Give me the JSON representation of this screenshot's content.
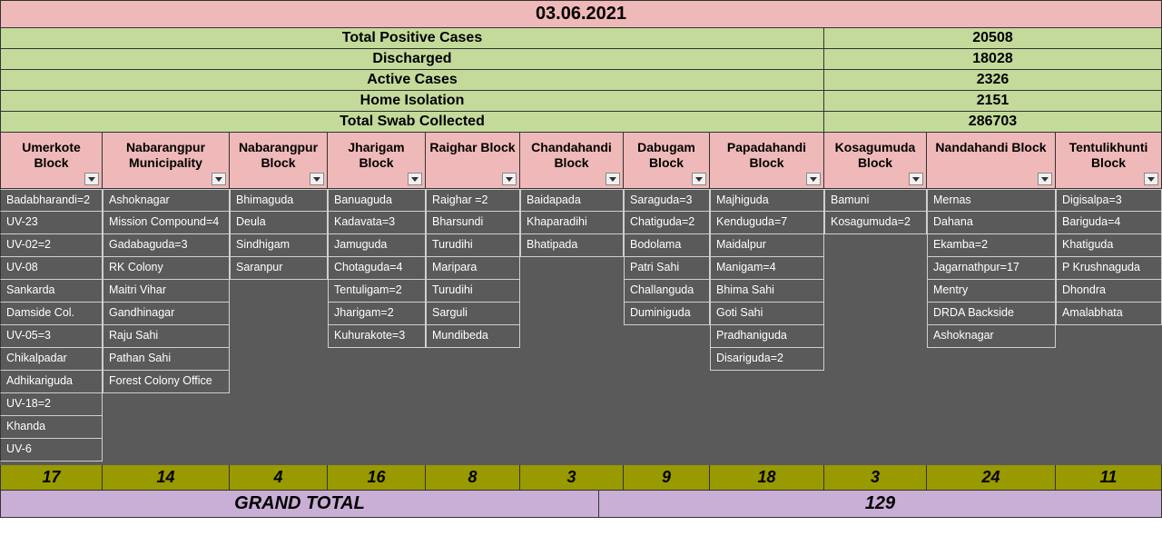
{
  "title": "03.06.2021",
  "summary": [
    {
      "label": "Total Positive Cases",
      "value": "20508"
    },
    {
      "label": "Discharged",
      "value": "18028"
    },
    {
      "label": "Active Cases",
      "value": "2326"
    },
    {
      "label": "Home Isolation",
      "value": "2151"
    },
    {
      "label": "Total Swab Collected",
      "value": "286703"
    }
  ],
  "columns": [
    {
      "header": "Umerkote Block",
      "width_class": "w0",
      "total": "17",
      "items": [
        "Badabharandi=2",
        "UV-23",
        "UV-02=2",
        "UV-08",
        "Sankarda",
        "Damside Col.",
        "UV-05=3",
        "Chikalpadar",
        "Adhikariguda",
        "UV-18=2",
        "Khanda",
        "UV-6"
      ]
    },
    {
      "header": "Nabarangpur Municipality",
      "width_class": "w1",
      "total": "14",
      "items": [
        "Ashoknagar",
        "Mission Compound=4",
        "Gadabaguda=3",
        "RK Colony",
        "Maitri Vihar",
        "Gandhinagar",
        "Raju Sahi",
        "Pathan Sahi",
        "Forest Colony Office"
      ]
    },
    {
      "header": "Nabarangpur Block",
      "width_class": "w2",
      "total": "4",
      "items": [
        "Bhimaguda",
        "Deula",
        "Sindhigam",
        "Saranpur"
      ]
    },
    {
      "header": "Jharigam Block",
      "width_class": "w3",
      "total": "16",
      "items": [
        "Banuaguda",
        "Kadavata=3",
        "Jamuguda",
        "Chotaguda=4",
        "Tentuligam=2",
        "Jharigam=2",
        "Kuhurakote=3"
      ]
    },
    {
      "header": "Raighar Block",
      "width_class": "w4",
      "total": "8",
      "items": [
        "Raighar  =2",
        "Bharsundi",
        "Turudihi",
        "Maripara",
        "Turudihi",
        "Sarguli",
        "Mundibeda"
      ]
    },
    {
      "header": "Chandahandi Block",
      "width_class": "w5",
      "total": "3",
      "items": [
        "Baidapada",
        "Khaparadihi",
        "Bhatipada"
      ]
    },
    {
      "header": "Dabugam Block",
      "width_class": "w6",
      "total": "9",
      "items": [
        "Saraguda=3",
        "Chatiguda=2",
        "Bodolama",
        "Patri Sahi",
        "Challanguda",
        "Duminiguda"
      ]
    },
    {
      "header": "Papadahandi Block",
      "width_class": "w7",
      "total": "18",
      "items": [
        "Majhiguda",
        "Kenduguda=7",
        "Maidalpur",
        "Manigam=4",
        "Bhima Sahi",
        "Goti Sahi",
        "Pradhaniguda",
        "Disariguda=2"
      ]
    },
    {
      "header": "Kosagumuda Block",
      "width_class": "w8",
      "total": "3",
      "items": [
        "Bamuni",
        "Kosagumuda=2"
      ]
    },
    {
      "header": "Nandahandi Block",
      "width_class": "w9",
      "total": "24",
      "items": [
        "Mernas",
        "Dahana",
        "Ekamba=2",
        "Jagarnathpur=17",
        "Mentry",
        "DRDA Backside",
        "Ashoknagar"
      ]
    },
    {
      "header": "Tentulikhunti Block",
      "width_class": "w10",
      "total": "11",
      "items": [
        "Digisalpa=3",
        "Bariguda=4",
        "Khatiguda",
        "P Krushnaguda",
        "Dhondra",
        "Amalabhata"
      ]
    }
  ],
  "grand_total": {
    "label": "GRAND TOTAL",
    "value": "129"
  },
  "colors": {
    "title_bg": "#eeb9b8",
    "summary_bg": "#c4da9b",
    "header_bg": "#eeb9b8",
    "data_bg": "#5a5a5a",
    "data_fg": "#ffffff",
    "totals_bg": "#999900",
    "grand_bg": "#c9aed6",
    "border": "#333333"
  }
}
